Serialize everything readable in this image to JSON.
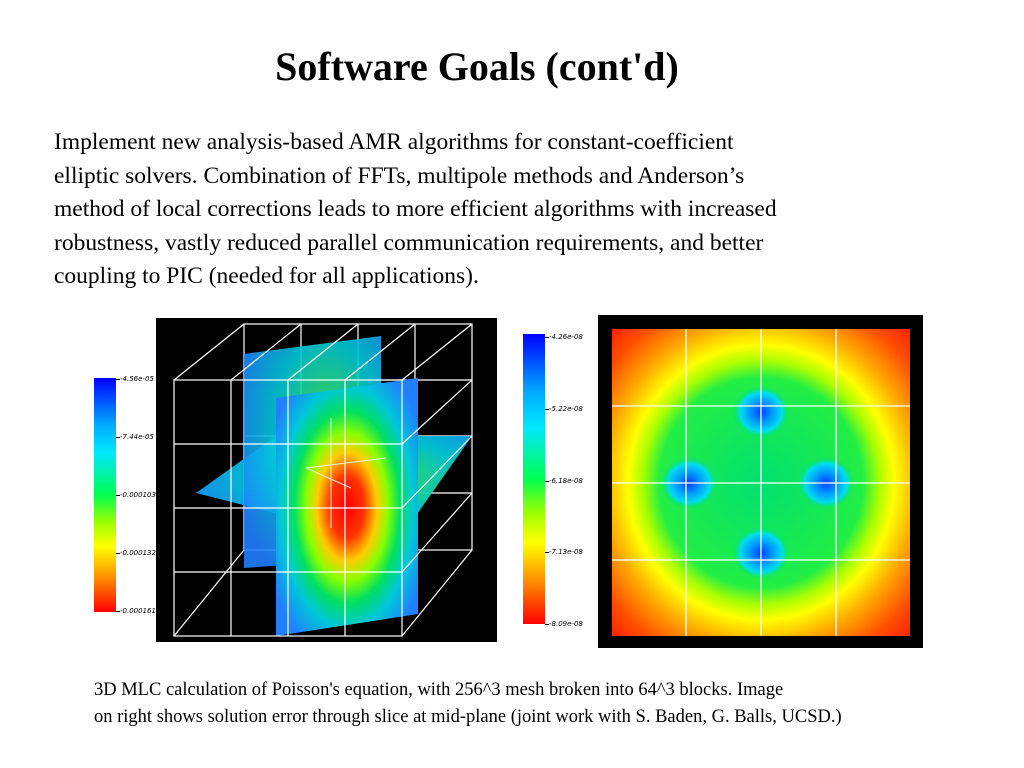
{
  "slide": {
    "title": "Software Goals (cont'd)",
    "body_lines": [
      "Implement new analysis-based AMR algorithms for constant-coefficient",
      "elliptic solvers. Combination of FFTs, multipole methods and Anderson’s",
      "method of local corrections leads to more efficient algorithms with increased",
      "robustness, vastly reduced parallel communication requirements, and better",
      "coupling to PIC (needed for all applications)."
    ],
    "caption_lines": [
      "3D MLC calculation of  Poisson's equation, with 256^3 mesh broken into 64^3 blocks. Image",
      "on right shows solution error through slice at mid-plane (joint work with S. Baden, G. Balls, UCSD.)"
    ]
  },
  "figures": {
    "left_colorbar": {
      "labels": [
        "-4.56e-05",
        "-7.44e-05",
        "-0.000103",
        "-0.000132",
        "-0.000161"
      ]
    },
    "right_colorbar": {
      "labels": [
        "-4.26e-08",
        "-5.22e-08",
        "-6.18e-08",
        "-7.13e-08",
        "-8.09e-08"
      ]
    }
  },
  "colors": {
    "background": "#ffffff",
    "text": "#000000",
    "plot_background": "#000000",
    "grid_lines": "#ffffff",
    "colormap": [
      "#0000ff",
      "#00e8ff",
      "#00ff50",
      "#ffff00",
      "#ff0000"
    ]
  }
}
